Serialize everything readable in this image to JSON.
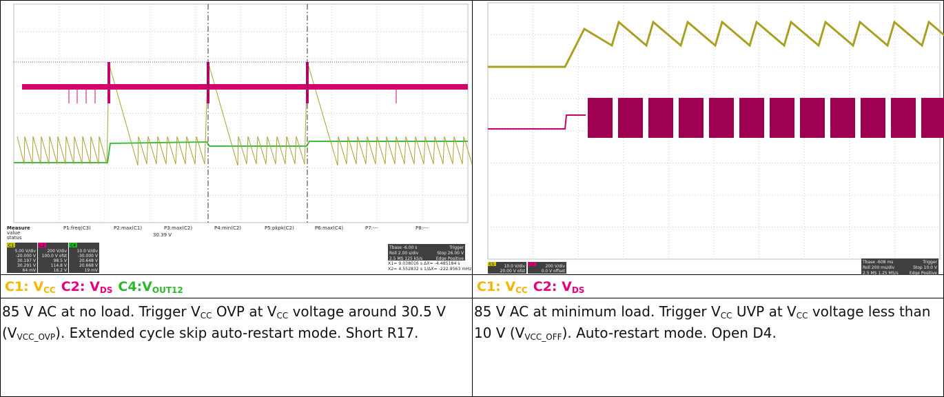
{
  "left_scope": {
    "measure": [
      "Measure",
      "value",
      "status"
    ],
    "params": [
      "P1:freq(C3)",
      "P2:max(C1)",
      "P3:max(C2)",
      "P4:min(C2)",
      "P5:pkpk(C2)",
      "P6:max(C4)",
      "P7:---",
      "P8:---"
    ],
    "p2_value": "30.39 V",
    "channels": [
      {
        "name": "C1",
        "color": "#c8c000",
        "rows": [
          "5.00 V/div",
          "-20.000 V",
          "30.197 V",
          "30.291 V",
          "64 mV"
        ]
      },
      {
        "name": "C2",
        "color": "#e0007a",
        "rows": [
          "200 V/div",
          "100.0 V ofst",
          "98.5 V",
          "114.8 V",
          "16.2 V"
        ]
      },
      {
        "name": "C4",
        "color": "#22b822",
        "rows": [
          "10.0 V/div",
          "-30.000 V",
          "20.648 V",
          "20.668 V",
          "19 mV"
        ]
      }
    ],
    "timebase": [
      "Tbase -6.00 s",
      "Roll 2.00 s/div",
      "2.5 MS 125 kS/s"
    ],
    "trigger": [
      "Trigger",
      "Stop 26.00 V",
      "Edge Positive"
    ],
    "cursors": [
      "X1= 9.038016 s   ΔX= -4.485184 s",
      "X2= 4.552832 s  1/ΔX= -222.9563 mHz"
    ]
  },
  "right_scope": {
    "channels": [
      {
        "name": "C1",
        "color": "#c8c000",
        "rows": [
          "10.0 V/div",
          "20.00 V ofst"
        ]
      },
      {
        "name": "C2",
        "color": "#e0007a",
        "rows": [
          "200 V/div",
          "0.0 V offset"
        ]
      }
    ],
    "timebase": [
      "Tbase -608 ms",
      "Roll 200 ms/div",
      "2.5 MS 1.25 MS/s"
    ],
    "trigger": [
      "Trigger",
      "Stop 10.0 V",
      "Edge Positive"
    ]
  },
  "captions": [
    [
      {
        "text": "C1: V",
        "sub": "CC",
        "color": "#f5b400"
      },
      {
        "text": "C2: V",
        "sub": "DS",
        "color": "#e6007e"
      },
      {
        "text": "C4:V",
        "sub": "OUT12",
        "color": "#2db82d"
      }
    ],
    [
      {
        "text": "C1: V",
        "sub": "CC",
        "color": "#f5b400"
      },
      {
        "text": "C2: V",
        "sub": "DS",
        "color": "#e6007e"
      }
    ]
  ],
  "descriptions": [
    [
      "85 V AC at no load. Trigger V",
      "CC",
      " OVP at V",
      "CC",
      " voltage around 30.5 V (V",
      "VCC_OVP",
      "). Extended cycle skip auto-restart mode. Short R17."
    ],
    [
      "85 V AC at minimum load. Trigger V",
      "CC",
      " UVP at V",
      "CC",
      " voltage less than 10 V (V",
      "VCC_OFF",
      "). Auto-restart mode. Open D4."
    ]
  ]
}
